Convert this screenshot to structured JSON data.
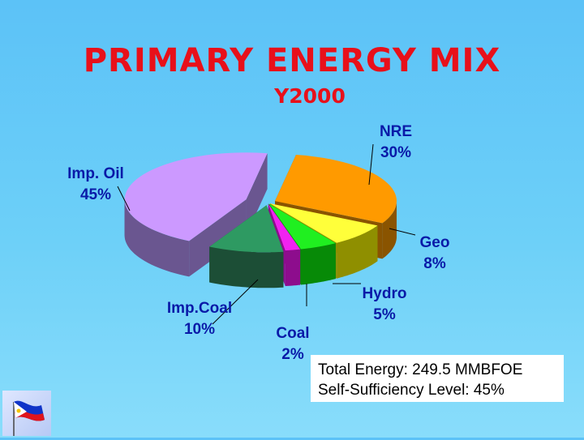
{
  "slide": {
    "title": "PRIMARY ENERGY MIX",
    "subtitle": "Y2000"
  },
  "chart_data": {
    "type": "pie",
    "style": "3d-exploded",
    "slices": [
      {
        "name": "NRE",
        "value": 30,
        "label_value": "30%",
        "color": "#ff9a00",
        "side_color": "#8a5400"
      },
      {
        "name": "Geo",
        "value": 8,
        "label_value": "8%",
        "color": "#ffff3a",
        "side_color": "#8f8f00"
      },
      {
        "name": "Hydro",
        "value": 5,
        "label_value": "5%",
        "color": "#20ef20",
        "side_color": "#078a07"
      },
      {
        "name": "Coal",
        "value": 2,
        "label_value": "2%",
        "color": "#f022f0",
        "side_color": "#8d0d8d"
      },
      {
        "name": "Imp.Coal",
        "value": 10,
        "label_value": "10%",
        "color": "#2e9a62",
        "side_color": "#1c4e36"
      },
      {
        "name": "Imp. Oil",
        "value": 45,
        "label_value": "45%",
        "color": "#cc99ff",
        "side_color": "#6a5690"
      }
    ],
    "legend": "none"
  },
  "info": {
    "total_energy": "Total Energy: 249.5 MMBFOE",
    "self_sufficiency": "Self-Sufficiency Level: 45%"
  },
  "logo": {
    "icon": "philippine-flag-icon"
  }
}
